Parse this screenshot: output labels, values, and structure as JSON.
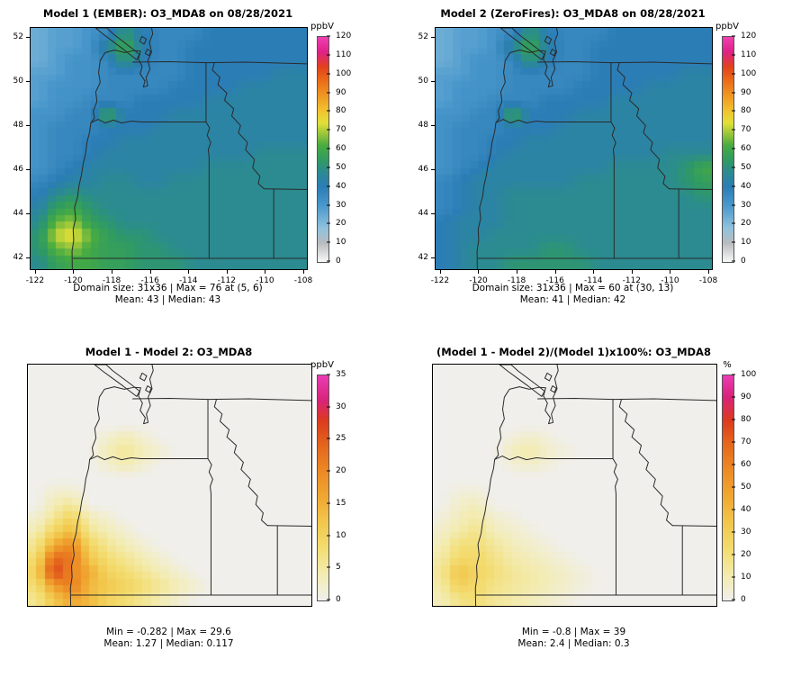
{
  "figure": {
    "background": "#ffffff"
  },
  "scales": {
    "conc": [
      [
        0,
        "#f8f8f8"
      ],
      [
        10,
        "#b9bcbe"
      ],
      [
        18,
        "#90c2de"
      ],
      [
        30,
        "#4a98cc"
      ],
      [
        40,
        "#2b7db6"
      ],
      [
        48,
        "#2b8b90"
      ],
      [
        54,
        "#2f9a64"
      ],
      [
        62,
        "#47ac41"
      ],
      [
        68,
        "#96c43a"
      ],
      [
        74,
        "#e0e038"
      ],
      [
        80,
        "#f2c52f"
      ],
      [
        88,
        "#f09b24"
      ],
      [
        96,
        "#eb7018"
      ],
      [
        104,
        "#e2421c"
      ],
      [
        112,
        "#df2187"
      ],
      [
        120,
        "#f140b2"
      ]
    ],
    "diff": [
      [
        0,
        "#f0efec"
      ],
      [
        4,
        "#f3ecb4"
      ],
      [
        8,
        "#f3dd72"
      ],
      [
        12,
        "#f2c84d"
      ],
      [
        16,
        "#f0a832"
      ],
      [
        20,
        "#ec8a24"
      ],
      [
        24,
        "#e5661c"
      ],
      [
        28,
        "#dc3a1e"
      ],
      [
        31,
        "#d82377"
      ],
      [
        35,
        "#ea3cb6"
      ]
    ],
    "pct": [
      [
        0,
        "#f0efec"
      ],
      [
        10,
        "#f3ecb4"
      ],
      [
        22,
        "#f3dd72"
      ],
      [
        34,
        "#f2c84d"
      ],
      [
        46,
        "#f0a832"
      ],
      [
        58,
        "#ec8a24"
      ],
      [
        70,
        "#e5661c"
      ],
      [
        80,
        "#dc3a1e"
      ],
      [
        90,
        "#d82377"
      ],
      [
        100,
        "#ea3cb6"
      ]
    ]
  },
  "chart_data": [
    {
      "type": "heatmap",
      "title": "Model 1 (EMBER): O3_MDA8 on 08/28/2021",
      "unit": "ppbV",
      "scale": "conc",
      "colorbar": {
        "min": 0,
        "max": 120,
        "ticks": [
          0,
          10,
          20,
          30,
          40,
          50,
          60,
          70,
          80,
          90,
          100,
          110,
          120
        ]
      },
      "x_ticks": [
        "-122",
        "-120",
        "-118",
        "-116",
        "-114",
        "-112",
        "-110",
        "-108"
      ],
      "y_ticks": [
        "52",
        "50",
        "48",
        "46",
        "44",
        "42"
      ],
      "caption1": "Domain size: 31x36 | Max = 76 at (5, 6)",
      "caption2": "Mean: 43 | Median: 43",
      "grid": {
        "encoding": "0123456789abcdefghij",
        "value_per_step": 4,
        "rows": [
          "67789da999aaaaaa",
          "6778cfb99aaaaaaa",
          "67889da99aaaaaaa",
          "778899999aaaaabb",
          "78889999aaaabbbb",
          "788999aaaabbbbbb",
          "8899faaabbbbbbbb",
          "8999aaabbbbbbbbb",
          "899aabbbbbbbbbbb",
          "899abbbbbbbbbccc",
          "89abbbbbbbcccccc",
          "9abbccbbcccccccc",
          "acdccccccccccccc",
          "befdcccccccccccc",
          "cghedccccccccccc",
          "dijgeddccccccccc",
          "dghfeeddcccccccc",
          "ceffeedddccccccc"
        ]
      }
    },
    {
      "type": "heatmap",
      "title": "Model 2 (ZeroFires): O3_MDA8 on 08/28/2021",
      "unit": "ppbV",
      "scale": "conc",
      "colorbar": {
        "min": 0,
        "max": 120,
        "ticks": [
          0,
          10,
          20,
          30,
          40,
          50,
          60,
          70,
          80,
          90,
          100,
          110,
          120
        ]
      },
      "x_ticks": [
        "-122",
        "-120",
        "-118",
        "-116",
        "-114",
        "-112",
        "-110",
        "-108"
      ],
      "y_ticks": [
        "52",
        "50",
        "48",
        "46",
        "44",
        "42"
      ],
      "caption1": "Domain size: 31x36 | Max = 60 at (30, 13)",
      "caption2": "Mean: 41 | Median: 42",
      "grid": {
        "encoding": "0123456789abcdefghij",
        "value_per_step": 4,
        "rows": [
          "67789da999aaaaaa",
          "6778cfb99aaaaaaa",
          "67889da99aaaaaaa",
          "778899999aaaaabb",
          "78889999aaaabbbb",
          "788999aaaabbbbbb",
          "8899faaabbbbbbbb",
          "8999aaabbbbbbbbb",
          "899aabbbbbbbbbbb",
          "899abbbbbbbbbccc",
          "89abbbbbbbccccdf",
          "9abbbbbbccccccde",
          "9abbcccccccccccd",
          "9abbcccccccccccc",
          "abbbcccccccccccc",
          "abbccccccccccccc",
          "abccccddcccccccc",
          "abccdddddccccccc"
        ]
      }
    },
    {
      "type": "heatmap",
      "title": "Model 1 - Model 2: O3_MDA8",
      "unit": "ppbV",
      "scale": "diff",
      "colorbar": {
        "min": 0,
        "max": 35,
        "ticks": [
          0,
          5,
          10,
          15,
          20,
          25,
          30,
          35
        ]
      },
      "caption1": "Min = -0.282 | Max = 29.6",
      "caption2": "Mean: 1.27 | Median: 0.117",
      "grid": {
        "encoding": "0123456789abcdefgh",
        "value_per_step": 2,
        "rows": [
          "0000000000000000",
          "0000000000000000",
          "0000000000000000",
          "0000000000000000",
          "0000000000000000",
          "0000121000000000",
          "0000232100000000",
          "0000121000000000",
          "0000000000000000",
          "0110000000000000",
          "0230000000000000",
          "1352100000000000",
          "2573210000000000",
          "38a5321000000000",
          "4cb6432100000000",
          "5ea8543210000000",
          "49b7654321000000",
          "3687543210000000"
        ]
      }
    },
    {
      "type": "heatmap",
      "title": "(Model 1 - Model 2)/(Model 1)x100%: O3_MDA8",
      "unit": "%",
      "scale": "pct",
      "colorbar": {
        "min": 0,
        "max": 100,
        "ticks": [
          0,
          10,
          20,
          30,
          40,
          50,
          60,
          70,
          80,
          90,
          100
        ]
      },
      "caption1": "Min = -0.8 | Max = 39",
      "caption2": "Mean: 2.4 | Median: 0.3",
      "grid": {
        "encoding": "0123456789abcd",
        "value_per_step": 3,
        "rows": [
          "0000000000000000",
          "0000000000000000",
          "0000000000000000",
          "0000000000000000",
          "0000000000000000",
          "0000121000000000",
          "0000342100000000",
          "0000121000000000",
          "0000000000000000",
          "0110000000000000",
          "0230000000000000",
          "1342100000000000",
          "2463210000000000",
          "3775321000000000",
          "4886432100000000",
          "5c97543210000000",
          "4a86543210000000",
          "3675432100000000"
        ]
      }
    }
  ]
}
